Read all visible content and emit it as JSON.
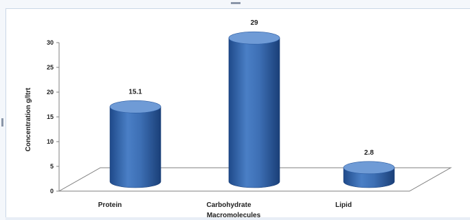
{
  "chart_data": {
    "type": "bar",
    "categories": [
      "Protein",
      "Carbohydrate",
      "Lipid"
    ],
    "values": [
      15.1,
      29,
      2.8
    ],
    "data_labels": [
      "15.1",
      "29",
      "2.8"
    ],
    "xlabel": "Macromolecules",
    "ylabel": "Concentration g/ltrt",
    "ylim": [
      0,
      30
    ],
    "yticks": [
      "0",
      "5",
      "10",
      "15",
      "20",
      "25",
      "30"
    ],
    "grid": false,
    "style": "3d-cylinder",
    "colors": {
      "bar": "#3d6fb4",
      "bar_dark": "#1f4a8a",
      "bar_light": "#6f9bd6",
      "axis": "#7f7f7f"
    }
  }
}
